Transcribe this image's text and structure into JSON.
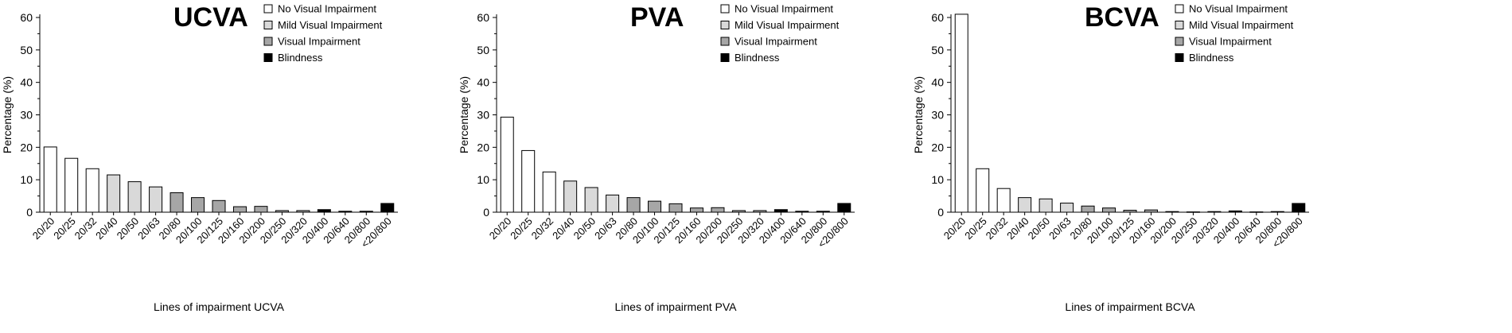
{
  "category_colors": {
    "none": "#ffffff",
    "mild": "#d9d9d9",
    "vi": "#a6a6a6",
    "blind": "#000000"
  },
  "chart_data": [
    {
      "type": "bar",
      "title": "UCVA",
      "xlabel": "Lines of impairment UCVA",
      "ylabel": "Percentage (%)",
      "ylim": [
        0,
        60
      ],
      "yticks": [
        0,
        10,
        20,
        30,
        40,
        50,
        60
      ],
      "categories": [
        "20/20",
        "20/25",
        "20/32",
        "20/40",
        "20/50",
        "20/63",
        "20/80",
        "20/100",
        "20/125",
        "20/160",
        "20/200",
        "20/250",
        "20/320",
        "20/400",
        "20/640",
        "20/800",
        "<20/800"
      ],
      "values": [
        20.1,
        16.6,
        13.4,
        11.5,
        9.4,
        7.8,
        6.0,
        4.5,
        3.6,
        1.7,
        1.8,
        0.5,
        0.5,
        0.8,
        0.3,
        0.3,
        2.7
      ],
      "bar_class": [
        "none",
        "none",
        "none",
        "mild",
        "mild",
        "mild",
        "vi",
        "vi",
        "vi",
        "vi",
        "vi",
        "vi",
        "vi",
        "blind",
        "blind",
        "blind",
        "blind"
      ],
      "legend": [
        {
          "label": "No Visual Impairment",
          "class": "none"
        },
        {
          "label": "Mild Visual Impairment",
          "class": "mild"
        },
        {
          "label": "Visual Impairment",
          "class": "vi"
        },
        {
          "label": "Blindness",
          "class": "blind"
        }
      ]
    },
    {
      "type": "bar",
      "title": "PVA",
      "xlabel": "Lines of impairment PVA",
      "ylabel": "Percentage (%)",
      "ylim": [
        0,
        60
      ],
      "yticks": [
        0,
        10,
        20,
        30,
        40,
        50,
        60
      ],
      "categories": [
        "20/20",
        "20/25",
        "20/32",
        "20/40",
        "20/50",
        "20/63",
        "20/80",
        "20/100",
        "20/125",
        "20/160",
        "20/200",
        "20/250",
        "20/320",
        "20/400",
        "20/640",
        "20/800",
        "<20/800"
      ],
      "values": [
        29.3,
        19.0,
        12.4,
        9.6,
        7.6,
        5.3,
        4.5,
        3.4,
        2.6,
        1.3,
        1.4,
        0.5,
        0.5,
        0.8,
        0.3,
        0.3,
        2.7
      ],
      "bar_class": [
        "none",
        "none",
        "none",
        "mild",
        "mild",
        "mild",
        "vi",
        "vi",
        "vi",
        "vi",
        "vi",
        "vi",
        "vi",
        "blind",
        "blind",
        "blind",
        "blind"
      ],
      "legend": [
        {
          "label": "No Visual Impairment",
          "class": "none"
        },
        {
          "label": "Mild Visual Impairment",
          "class": "mild"
        },
        {
          "label": "Visual Impairment",
          "class": "vi"
        },
        {
          "label": "Blindness",
          "class": "blind"
        }
      ]
    },
    {
      "type": "bar",
      "title": "BCVA",
      "xlabel": "Lines of impairment BCVA",
      "ylabel": "Percentage (%)",
      "ylim": [
        0,
        60
      ],
      "yticks": [
        0,
        10,
        20,
        30,
        40,
        50,
        60
      ],
      "categories": [
        "20/20",
        "20/25",
        "20/32",
        "20/40",
        "20/50",
        "20/63",
        "20/80",
        "20/100",
        "20/125",
        "20/160",
        "20/200",
        "20/250",
        "20/320",
        "20/400",
        "20/640",
        "20/800",
        "<20/800"
      ],
      "values": [
        61.0,
        13.4,
        7.3,
        4.5,
        4.1,
        2.8,
        1.9,
        1.3,
        0.6,
        0.7,
        0.2,
        0.1,
        0.2,
        0.4,
        0.1,
        0.2,
        2.7
      ],
      "bar_class": [
        "none",
        "none",
        "none",
        "mild",
        "mild",
        "mild",
        "vi",
        "vi",
        "vi",
        "vi",
        "vi",
        "vi",
        "vi",
        "blind",
        "blind",
        "blind",
        "blind"
      ],
      "legend": [
        {
          "label": "No Visual Impairment",
          "class": "none"
        },
        {
          "label": "Mild Visual Impairment",
          "class": "mild"
        },
        {
          "label": "Visual Impairment",
          "class": "vi"
        },
        {
          "label": "Blindness",
          "class": "blind"
        }
      ]
    }
  ]
}
